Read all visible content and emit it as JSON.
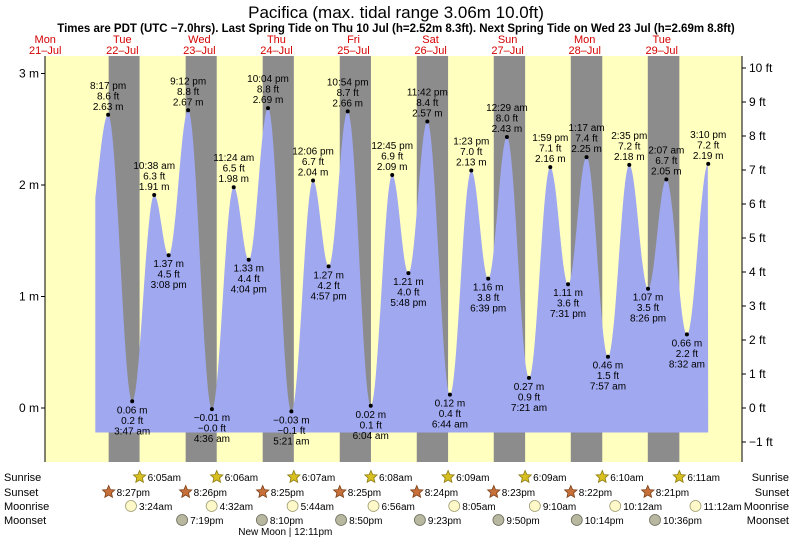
{
  "title": "Pacifica (max. tidal range 3.06m 10.0ft)",
  "subtitle": "Times are PDT (UTC −7.0hrs). Last Spring Tide on Thu 10 Jul (h=2.52m 8.3ft). Next Spring Tide on Wed 23 Jul (h=2.69m 8.8ft)",
  "colors": {
    "day": "#ffffc0",
    "night": "#8c8c8c",
    "water": "#a0a8f0",
    "day_text": "#d40000"
  },
  "days": [
    {
      "dow": "Mon",
      "date": "21–Jul"
    },
    {
      "dow": "Tue",
      "date": "22–Jul"
    },
    {
      "dow": "Wed",
      "date": "23–Jul"
    },
    {
      "dow": "Thu",
      "date": "24–Jul"
    },
    {
      "dow": "Fri",
      "date": "25–Jul"
    },
    {
      "dow": "Sat",
      "date": "26–Jul"
    },
    {
      "dow": "Sun",
      "date": "27–Jul"
    },
    {
      "dow": "Mon",
      "date": "28–Jul"
    },
    {
      "dow": "Tue",
      "date": "29–Jul"
    }
  ],
  "chart_data": {
    "type": "area",
    "title": "Pacifica (max. tidal range 3.06m 10.0ft)",
    "x_unit": "hours from 00:00 Mon 21-Jul",
    "ylabel_left": "m",
    "ylabel_right": "ft",
    "ylim": [
      -0.45,
      3.1
    ],
    "left_ticks": [
      {
        "v": 0,
        "label": "0 m"
      },
      {
        "v": 1,
        "label": "1 m"
      },
      {
        "v": 2,
        "label": "2 m"
      },
      {
        "v": 3,
        "label": "3 m"
      }
    ],
    "right_ticks": [
      {
        "v": -1,
        "label": "−1 ft"
      },
      {
        "v": 0,
        "label": "0 ft"
      },
      {
        "v": 1,
        "label": "1 ft"
      },
      {
        "v": 2,
        "label": "2 ft"
      },
      {
        "v": 3,
        "label": "3 ft"
      },
      {
        "v": 4,
        "label": "4 ft"
      },
      {
        "v": 5,
        "label": "5 ft"
      },
      {
        "v": 6,
        "label": "6 ft"
      },
      {
        "v": 7,
        "label": "7 ft"
      },
      {
        "v": 8,
        "label": "8 ft"
      },
      {
        "v": 9,
        "label": "9 ft"
      },
      {
        "v": 10,
        "label": "10 ft"
      }
    ],
    "tides": [
      {
        "t": 20.28,
        "m": 2.63,
        "line1": "8:17 pm",
        "line2": "8.6 ft",
        "line3": "2.63 m",
        "high": true
      },
      {
        "t": 27.78,
        "m": 0.06,
        "line1": "0.06 m",
        "line2": "0.2 ft",
        "line3": "3:47 am",
        "high": false
      },
      {
        "t": 34.63,
        "m": 1.91,
        "line1": "10:38 am",
        "line2": "6.3 ft",
        "line3": "1.91 m",
        "high": true
      },
      {
        "t": 39.13,
        "m": 1.37,
        "line1": "1.37 m",
        "line2": "4.5 ft",
        "line3": "3:08 pm",
        "high": false
      },
      {
        "t": 45.2,
        "m": 2.67,
        "line1": "9:12 pm",
        "line2": "8.8 ft",
        "line3": "2.67 m",
        "high": true
      },
      {
        "t": 52.6,
        "m": -0.01,
        "line1": "−0.01 m",
        "line2": "−0.0 ft",
        "line3": "4:36 am",
        "high": false
      },
      {
        "t": 59.4,
        "m": 1.98,
        "line1": "11:24 am",
        "line2": "6.5 ft",
        "line3": "1.98 m",
        "high": true
      },
      {
        "t": 64.07,
        "m": 1.33,
        "line1": "1.33 m",
        "line2": "4.4 ft",
        "line3": "4:04 pm",
        "high": false
      },
      {
        "t": 70.07,
        "m": 2.69,
        "line1": "10:04 pm",
        "line2": "8.8 ft",
        "line3": "2.69 m",
        "high": true
      },
      {
        "t": 77.35,
        "m": -0.03,
        "line1": "−0.03 m",
        "line2": "−0.1 ft",
        "line3": "5:21 am",
        "high": false
      },
      {
        "t": 84.1,
        "m": 2.04,
        "line1": "12:06 pm",
        "line2": "6.7 ft",
        "line3": "2.04 m",
        "high": true
      },
      {
        "t": 88.95,
        "m": 1.27,
        "line1": "1.27 m",
        "line2": "4.2 ft",
        "line3": "4:57 pm",
        "high": false
      },
      {
        "t": 94.9,
        "m": 2.66,
        "line1": "10:54 pm",
        "line2": "8.7 ft",
        "line3": "2.66 m",
        "high": true
      },
      {
        "t": 102.07,
        "m": 0.02,
        "line1": "0.02 m",
        "line2": "0.1 ft",
        "line3": "6:04 am",
        "high": false
      },
      {
        "t": 108.75,
        "m": 2.09,
        "line1": "12:45 pm",
        "line2": "6.9 ft",
        "line3": "2.09 m",
        "high": true
      },
      {
        "t": 113.8,
        "m": 1.21,
        "line1": "1.21 m",
        "line2": "4.0 ft",
        "line3": "5:48 pm",
        "high": false
      },
      {
        "t": 119.7,
        "m": 2.57,
        "line1": "11:42 pm",
        "line2": "8.4 ft",
        "line3": "2.57 m",
        "high": true
      },
      {
        "t": 126.73,
        "m": 0.12,
        "line1": "0.12 m",
        "line2": "0.4 ft",
        "line3": "6:44 am",
        "high": false
      },
      {
        "t": 133.38,
        "m": 2.13,
        "line1": "1:23 pm",
        "line2": "7.0 ft",
        "line3": "2.13 m",
        "high": true
      },
      {
        "t": 138.65,
        "m": 1.16,
        "line1": "1.16 m",
        "line2": "3.8 ft",
        "line3": "6:39 pm",
        "high": false
      },
      {
        "t": 144.48,
        "m": 2.43,
        "line1": "12:29 am",
        "line2": "8.0 ft",
        "line3": "2.43 m",
        "high": true
      },
      {
        "t": 151.35,
        "m": 0.27,
        "line1": "0.27 m",
        "line2": "0.9 ft",
        "line3": "7:21 am",
        "high": false
      },
      {
        "t": 157.98,
        "m": 2.16,
        "line1": "1:59 pm",
        "line2": "7.1 ft",
        "line3": "2.16 m",
        "high": true
      },
      {
        "t": 163.52,
        "m": 1.11,
        "line1": "1.11 m",
        "line2": "3.6 ft",
        "line3": "7:31 pm",
        "high": false
      },
      {
        "t": 169.28,
        "m": 2.25,
        "line1": "1:17 am",
        "line2": "7.4 ft",
        "line3": "2.25 m",
        "high": true
      },
      {
        "t": 175.95,
        "m": 0.46,
        "line1": "0.46 m",
        "line2": "1.5 ft",
        "line3": "7:57 am",
        "high": false
      },
      {
        "t": 182.58,
        "m": 2.18,
        "line1": "2:35 pm",
        "line2": "7.2 ft",
        "line3": "2.18 m",
        "high": true
      },
      {
        "t": 188.43,
        "m": 1.07,
        "line1": "1.07 m",
        "line2": "3.5 ft",
        "line3": "8:26 pm",
        "high": false
      },
      {
        "t": 194.12,
        "m": 2.05,
        "line1": "2:07 am",
        "line2": "6.7 ft",
        "line3": "2.05 m",
        "high": true
      },
      {
        "t": 200.53,
        "m": 0.66,
        "line1": "0.66 m",
        "line2": "2.2 ft",
        "line3": "8:32 am",
        "high": false
      },
      {
        "t": 207.17,
        "m": 2.19,
        "line1": "3:10 pm",
        "line2": "7.2 ft",
        "line3": "2.19 m",
        "high": true
      }
    ]
  },
  "rows": {
    "sunrise_label": "Sunrise",
    "sunset_label": "Sunset",
    "moonrise_label": "Moonrise",
    "moonset_label": "Moonset",
    "sunrise": [
      {
        "t": 30.08,
        "text": "6:05am"
      },
      {
        "t": 54.1,
        "text": "6:06am"
      },
      {
        "t": 78.12,
        "text": "6:07am"
      },
      {
        "t": 102.13,
        "text": "6:08am"
      },
      {
        "t": 126.15,
        "text": "6:09am"
      },
      {
        "t": 150.15,
        "text": "6:09am"
      },
      {
        "t": 174.17,
        "text": "6:10am"
      },
      {
        "t": 198.18,
        "text": "6:11am"
      }
    ],
    "sunset": [
      {
        "t": 20.45,
        "text": "8:27pm"
      },
      {
        "t": 44.43,
        "text": "8:26pm"
      },
      {
        "t": 68.42,
        "text": "8:25pm"
      },
      {
        "t": 92.42,
        "text": "8:25pm"
      },
      {
        "t": 116.4,
        "text": "8:24pm"
      },
      {
        "t": 140.38,
        "text": "8:23pm"
      },
      {
        "t": 164.37,
        "text": "8:22pm"
      },
      {
        "t": 188.35,
        "text": "8:21pm"
      }
    ],
    "moonrise": [
      {
        "t": 27.4,
        "text": "3:24am"
      },
      {
        "t": 52.53,
        "text": "4:32am"
      },
      {
        "t": 77.73,
        "text": "5:44am"
      },
      {
        "t": 102.93,
        "text": "6:56am"
      },
      {
        "t": 128.08,
        "text": "8:05am"
      },
      {
        "t": 153.17,
        "text": "9:10am"
      },
      {
        "t": 178.2,
        "text": "10:12am"
      },
      {
        "t": 203.2,
        "text": "11:12am"
      }
    ],
    "moonset": [
      {
        "t": 43.32,
        "text": "7:19pm"
      },
      {
        "t": 68.17,
        "text": "8:10pm"
      },
      {
        "t": 92.83,
        "text": "8:50pm"
      },
      {
        "t": 117.38,
        "text": "9:23pm"
      },
      {
        "t": 141.83,
        "text": "9:50pm"
      },
      {
        "t": 166.23,
        "text": "10:14pm"
      },
      {
        "t": 190.6,
        "text": "10:36pm"
      }
    ],
    "new_moon": {
      "t": 84.18,
      "text": "New Moon | 12:11pm"
    }
  }
}
